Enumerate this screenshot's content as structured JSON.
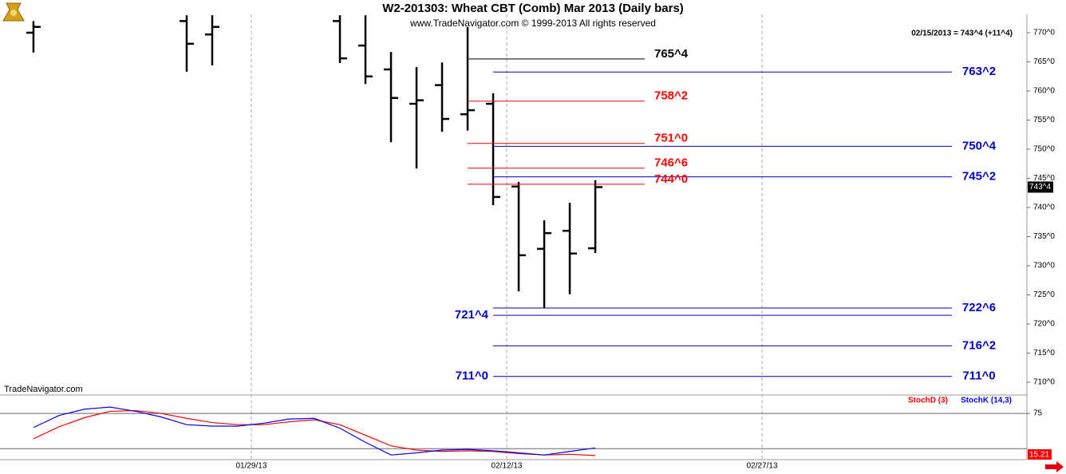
{
  "chart_data": [
    {
      "type": "ohlc",
      "title": "W2-201303:  Wheat CBT (Comb) Mar 2013  (Daily bars)",
      "subtitle": "www.TradeNavigator.com © 1999-2013 All rights reserved",
      "header": "02/15/2013 = 743^4 (+11^4)",
      "watermark": "TradeNavigator.com",
      "color": "#000000",
      "x": [
        0,
        6,
        7,
        12,
        13,
        14,
        15,
        16,
        17,
        18,
        19,
        20,
        21,
        22
      ],
      "open": [
        770.0,
        772.0,
        769.7,
        772.0,
        767.8,
        763.7,
        757.8,
        761.0,
        756.0,
        757.8,
        743.6,
        732.9,
        736.0,
        733.0
      ],
      "high": [
        772.0,
        773.0,
        773.0,
        773.0,
        773.0,
        766.7,
        764.1,
        764.9,
        771.0,
        759.6,
        744.4,
        737.8,
        740.8,
        744.7
      ],
      "low": [
        766.6,
        763.3,
        764.4,
        764.8,
        761.2,
        751.2,
        746.7,
        753.0,
        753.2,
        740.4,
        725.6,
        722.7,
        725.1,
        732.2
      ],
      "close": [
        771.0,
        768.1,
        771.0,
        765.6,
        762.5,
        758.8,
        758.4,
        755.2,
        756.7,
        741.8,
        731.8,
        735.6,
        732.1,
        743.5
      ],
      "last_value": {
        "value": 743.5,
        "label": "743^4"
      },
      "xlim": [
        -1.31,
        38.9
      ],
      "xticks": [
        {
          "value": 8.53,
          "label": "01/29/13"
        },
        {
          "value": 18.53,
          "label": "02/12/13"
        },
        {
          "value": 28.53,
          "label": "02/27/13"
        }
      ],
      "ylim": [
        707.95,
        773.15
      ],
      "yticks": [
        {
          "value": 710,
          "label": "710^0"
        },
        {
          "value": 715,
          "label": "715^0"
        },
        {
          "value": 720,
          "label": "720^0"
        },
        {
          "value": 725,
          "label": "725^0"
        },
        {
          "value": 730,
          "label": "730^0"
        },
        {
          "value": 735,
          "label": "735^0"
        },
        {
          "value": 740,
          "label": "740^0"
        },
        {
          "value": 745,
          "label": "745^0"
        },
        {
          "value": 750,
          "label": "750^0"
        },
        {
          "value": 755,
          "label": "755^0"
        },
        {
          "value": 760,
          "label": "760^0"
        },
        {
          "value": 765,
          "label": "765^0"
        },
        {
          "value": 770,
          "label": "770^0"
        }
      ],
      "levels": [
        {
          "value": 765.5,
          "label": "765^4",
          "color": "#000000",
          "length": "short",
          "label_position": "right"
        },
        {
          "value": 763.25,
          "label": "763^2",
          "color": "#0000cc",
          "length": "long",
          "label_position": "right"
        },
        {
          "value": 758.25,
          "label": "758^2",
          "color": "#ff0000",
          "length": "short",
          "label_position": "right"
        },
        {
          "value": 751,
          "label": "751^0",
          "color": "#ff0000",
          "length": "short",
          "label_position": "right"
        },
        {
          "value": 750.5,
          "label": "750^4",
          "color": "#0000cc",
          "length": "long",
          "label_position": "right"
        },
        {
          "value": 746.75,
          "label": "746^6",
          "color": "#ff0000",
          "length": "short",
          "label_position": "right"
        },
        {
          "value": 745.25,
          "label": "745^2",
          "color": "#0000cc",
          "length": "long",
          "label_position": "right"
        },
        {
          "value": 744,
          "label": "744^0",
          "color": "#ff0000",
          "length": "short",
          "label_position": "right"
        },
        {
          "value": 722.75,
          "label": "722^6",
          "color": "#0000cc",
          "length": "long",
          "label_position": "right"
        },
        {
          "value": 721.5,
          "label": "721^4",
          "color": "#0000cc",
          "length": "long",
          "label_position": "left"
        },
        {
          "value": 716.25,
          "label": "716^2",
          "color": "#0000cc",
          "length": "long",
          "label_position": "right"
        },
        {
          "value": 711,
          "label": "711^0",
          "color": "#0000cc",
          "length": "long",
          "label_position": "both"
        }
      ]
    },
    {
      "type": "line",
      "x": [
        0,
        1,
        2,
        3,
        4,
        5,
        6,
        7,
        8,
        9,
        10,
        11,
        12,
        13,
        14,
        15,
        16,
        17,
        18,
        19,
        20,
        21,
        22
      ],
      "series": [
        {
          "name": "StochD (3)",
          "color": "#ff0000",
          "values": [
            39,
            56,
            69,
            78,
            79,
            75,
            68,
            62,
            59,
            59,
            63,
            66,
            59,
            44,
            29,
            23,
            21,
            22,
            21,
            18,
            16,
            17,
            15.21
          ]
        },
        {
          "name": "StochK (14,3)",
          "color": "#0000ff",
          "values": [
            55,
            72,
            81,
            84,
            78,
            70,
            59,
            57,
            57,
            61,
            67,
            68,
            54,
            34,
            16,
            19,
            23,
            24,
            22,
            19,
            16,
            21,
            26
          ]
        }
      ],
      "ylim": [
        9.4,
        100
      ],
      "yticks": [
        75
      ],
      "ref_lines": [
        75,
        25
      ]
    }
  ]
}
